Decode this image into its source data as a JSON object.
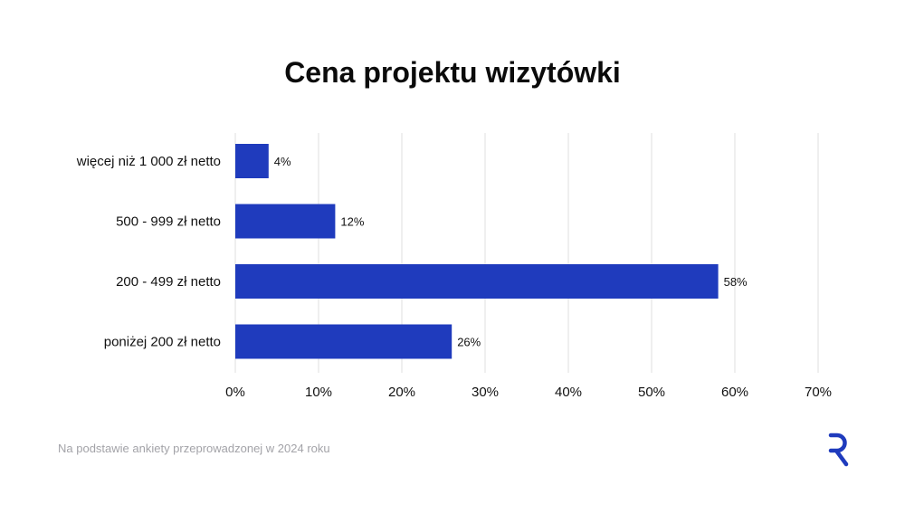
{
  "chart_data": {
    "type": "bar",
    "orientation": "horizontal",
    "title": "Cena projektu wizytówki",
    "categories": [
      "więcej niż 1 000 zł netto",
      "500 - 999 zł netto",
      "200 - 499 zł netto",
      "poniżej 200 zł netto"
    ],
    "values": [
      4,
      12,
      58,
      26
    ],
    "value_labels": [
      "4%",
      "12%",
      "58%",
      "26%"
    ],
    "xlim": [
      0,
      70
    ],
    "xticks": [
      0,
      10,
      20,
      30,
      40,
      50,
      60,
      70
    ],
    "xtick_labels": [
      "0%",
      "10%",
      "20%",
      "30%",
      "40%",
      "50%",
      "60%",
      "70%"
    ],
    "grid": "vertical",
    "bar_color": "#1f3bbd",
    "grid_color": "#e4e4e4"
  },
  "footnote": "Na podstawie ankiety przeprowadzonej w 2024 roku",
  "logo": {
    "icon": "r-logo-icon",
    "color": "#1f3bbd"
  }
}
